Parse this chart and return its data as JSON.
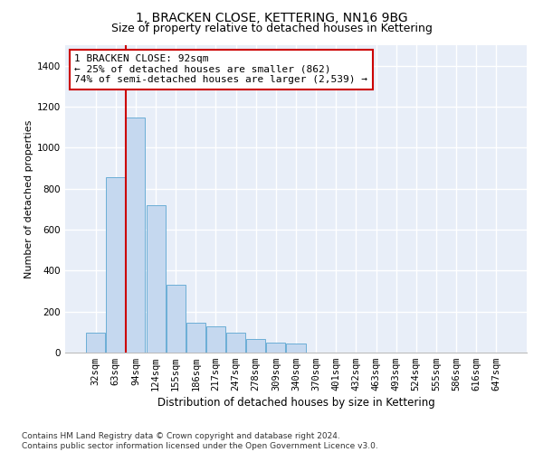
{
  "title": "1, BRACKEN CLOSE, KETTERING, NN16 9BG",
  "subtitle": "Size of property relative to detached houses in Kettering",
  "xlabel": "Distribution of detached houses by size in Kettering",
  "ylabel": "Number of detached properties",
  "bar_color": "#c5d8ef",
  "bar_edge_color": "#6baed6",
  "background_color": "#e8eef8",
  "grid_color": "#ffffff",
  "fig_background": "#ffffff",
  "categories": [
    "32sqm",
    "63sqm",
    "94sqm",
    "124sqm",
    "155sqm",
    "186sqm",
    "217sqm",
    "247sqm",
    "278sqm",
    "309sqm",
    "340sqm",
    "370sqm",
    "401sqm",
    "432sqm",
    "463sqm",
    "493sqm",
    "524sqm",
    "555sqm",
    "586sqm",
    "616sqm",
    "647sqm"
  ],
  "values": [
    95,
    855,
    1145,
    720,
    330,
    145,
    130,
    95,
    65,
    50,
    45,
    0,
    0,
    0,
    0,
    0,
    0,
    0,
    0,
    0,
    0
  ],
  "annotation_text": "1 BRACKEN CLOSE: 92sqm\n← 25% of detached houses are smaller (862)\n74% of semi-detached houses are larger (2,539) →",
  "annotation_box_color": "#ffffff",
  "annotation_box_edge_color": "#cc0000",
  "vline_color": "#cc0000",
  "vline_bin": 2,
  "ylim": [
    0,
    1500
  ],
  "yticks": [
    0,
    200,
    400,
    600,
    800,
    1000,
    1200,
    1400
  ],
  "footnote": "Contains HM Land Registry data © Crown copyright and database right 2024.\nContains public sector information licensed under the Open Government Licence v3.0.",
  "title_fontsize": 10,
  "subtitle_fontsize": 9,
  "xlabel_fontsize": 8.5,
  "ylabel_fontsize": 8,
  "tick_fontsize": 7.5,
  "annotation_fontsize": 8,
  "footnote_fontsize": 6.5
}
